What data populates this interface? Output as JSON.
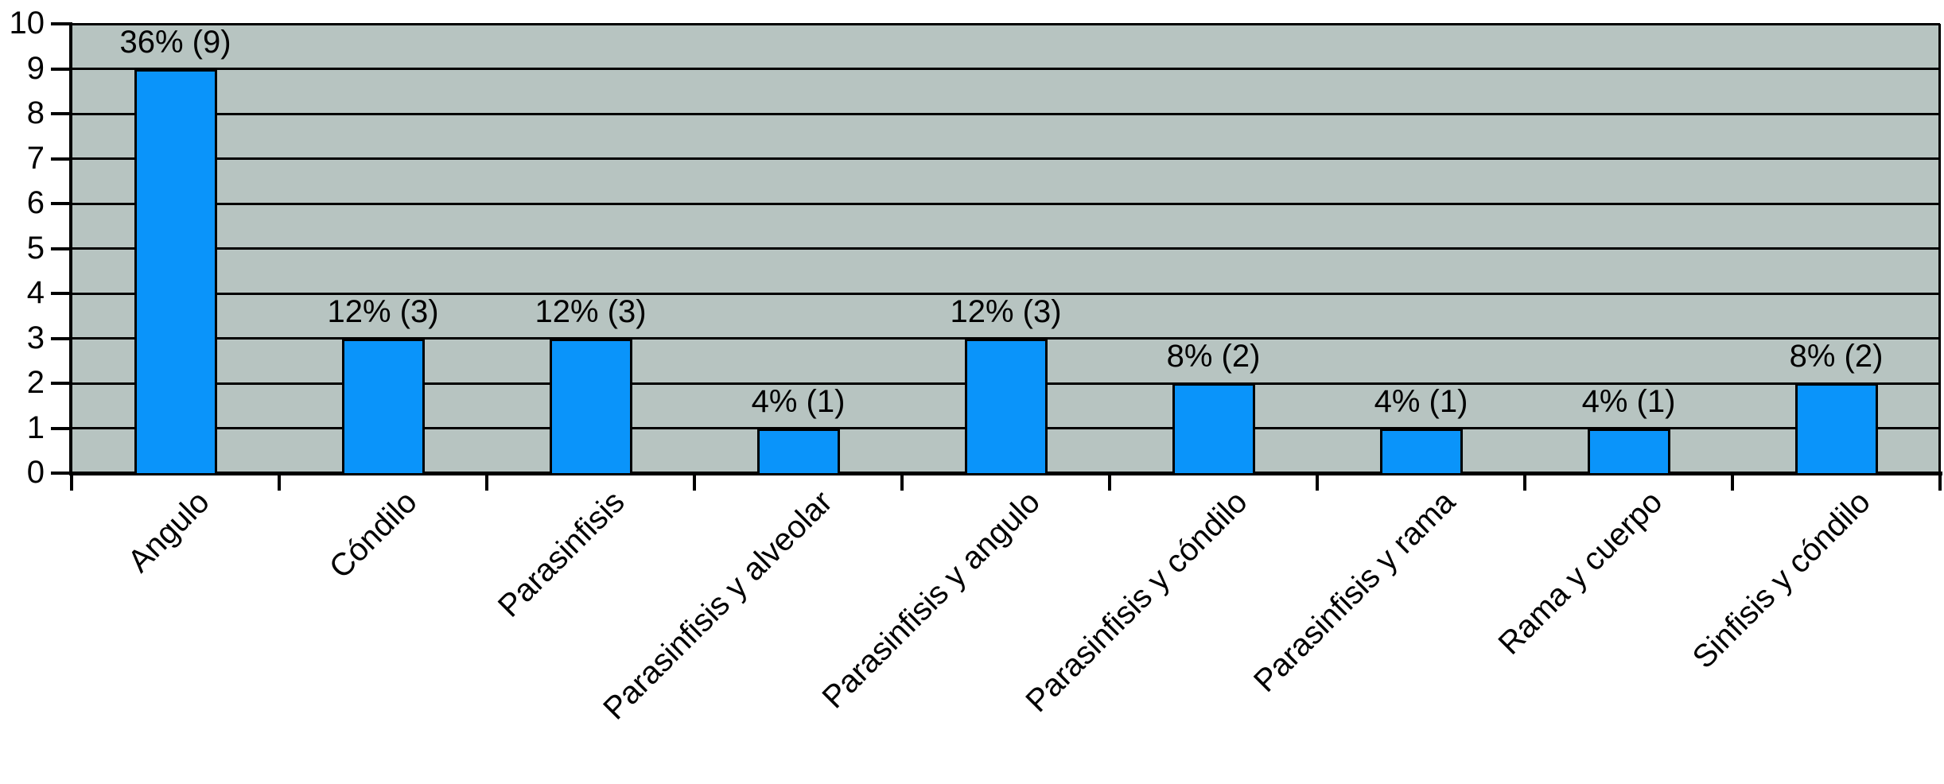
{
  "chart_data": {
    "type": "bar",
    "title": "",
    "xlabel": "",
    "ylabel": "",
    "categories": [
      "Angulo",
      "Cóndilo",
      "Parasinfisis",
      "Parasinfisis y alveolar",
      "Parasinfisis y angulo",
      "Parasinfisis y cóndilo",
      "Parasinfisis y rama",
      "Rama y cuerpo",
      "Sinfisis y cóndilo"
    ],
    "values": [
      9,
      3,
      3,
      1,
      3,
      2,
      1,
      1,
      2
    ],
    "percentages": [
      36,
      12,
      12,
      4,
      12,
      8,
      4,
      4,
      8
    ],
    "bar_labels": [
      "36% (9)",
      "12% (3)",
      "12% (3)",
      "4% (1)",
      "12% (3)",
      "8% (2)",
      "4% (1)",
      "4% (1)",
      "8% (2)"
    ],
    "ylim": [
      0,
      10
    ],
    "ytick_labels": [
      "0",
      "1",
      "2",
      "3",
      "4",
      "5",
      "6",
      "7",
      "8",
      "9",
      "10"
    ],
    "grid": "horizontal-integer-lines",
    "legend": "none",
    "x_label_rotation_deg": 45,
    "colors": {
      "bar_fill": "#0a94fa",
      "bar_border": "#000000",
      "plot_background": "#b7c4c1",
      "grid_line": "#000000",
      "axis_line": "#000000",
      "page_background": "#ffffff",
      "text": "#000000"
    }
  }
}
